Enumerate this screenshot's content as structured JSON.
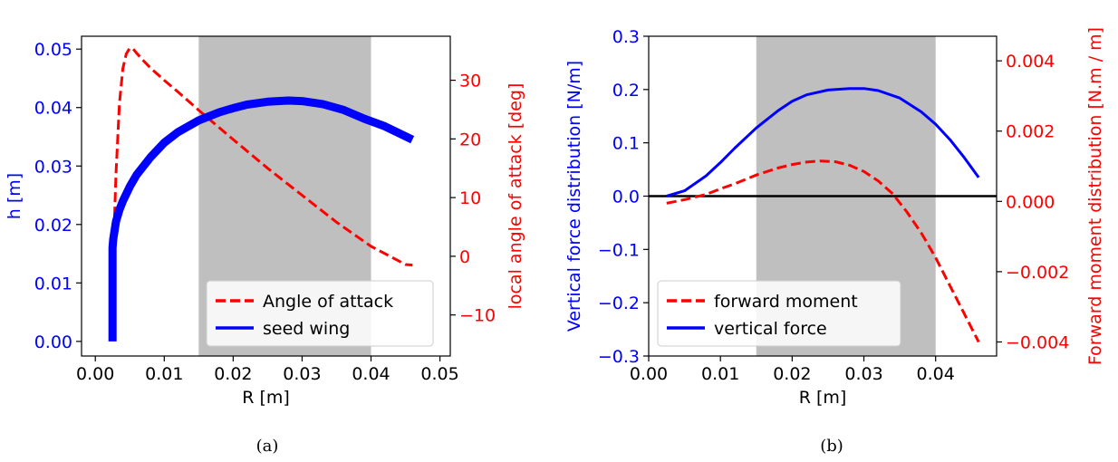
{
  "colors": {
    "blue": "#0000ff",
    "red": "#ff0000",
    "shade": "#bfbfbf",
    "black": "#000000"
  },
  "chart_data": [
    {
      "panel": "a",
      "type": "line",
      "caption": "(a)",
      "xlabel": "R [m]",
      "ylabel_left": "h [m]",
      "ylabel_right": "local angle of attack [deg]",
      "xlim": [
        -0.002,
        0.0515
      ],
      "ylim_left": [
        -0.0025,
        0.0522
      ],
      "ylim_right": [
        -17.0,
        37.5
      ],
      "xticks": [
        0.0,
        0.01,
        0.02,
        0.03,
        0.04,
        0.05
      ],
      "xtick_labels": [
        "0.00",
        "0.01",
        "0.02",
        "0.03",
        "0.04",
        "0.05"
      ],
      "yticks_left": [
        0.0,
        0.01,
        0.02,
        0.03,
        0.04,
        0.05
      ],
      "ytick_labels_left": [
        "0.00",
        "0.01",
        "0.02",
        "0.03",
        "0.04",
        "0.05"
      ],
      "yticks_right": [
        -10,
        0,
        10,
        20,
        30
      ],
      "ytick_labels_right": [
        "−10",
        "0",
        "10",
        "20",
        "30"
      ],
      "shaded_region_x": [
        0.015,
        0.04
      ],
      "legend_position": "lower right",
      "series": [
        {
          "name": "Angle of attack",
          "axis": "right",
          "style": "dashed",
          "color": "red",
          "x": [
            0.0024,
            0.0026,
            0.003,
            0.0035,
            0.004,
            0.0045,
            0.005,
            0.0055,
            0.006,
            0.007,
            0.008,
            0.01,
            0.012,
            0.015,
            0.018,
            0.02,
            0.025,
            0.03,
            0.035,
            0.04,
            0.045,
            0.046
          ],
          "values": [
            -13,
            0,
            14,
            26,
            32,
            34.5,
            35.5,
            35.3,
            34.6,
            33.3,
            32.1,
            30.0,
            28.0,
            24.9,
            21.9,
            19.9,
            15.0,
            10.4,
            5.8,
            1.7,
            -1.4,
            -1.5
          ]
        },
        {
          "name": "seed wing",
          "axis": "left",
          "style": "solid-thick",
          "color": "blue",
          "x": [
            0.0025,
            0.0025,
            0.0026,
            0.0028,
            0.003,
            0.0035,
            0.004,
            0.005,
            0.006,
            0.008,
            0.01,
            0.012,
            0.015,
            0.018,
            0.02,
            0.022,
            0.025,
            0.028,
            0.03,
            0.033,
            0.036,
            0.039,
            0.042,
            0.046
          ],
          "values": [
            0.0,
            0.016,
            0.0175,
            0.019,
            0.0205,
            0.0225,
            0.024,
            0.0265,
            0.0285,
            0.0315,
            0.034,
            0.0358,
            0.0378,
            0.0392,
            0.0399,
            0.0405,
            0.041,
            0.0412,
            0.0411,
            0.0406,
            0.0396,
            0.0381,
            0.0368,
            0.0345
          ]
        }
      ]
    },
    {
      "panel": "b",
      "type": "line",
      "caption": "(b)",
      "xlabel": "R [m]",
      "ylabel_left": "Vertical force distribution [N/m]",
      "ylabel_right": "Forward moment distribution [N.m / m]",
      "xlim": [
        0.0,
        0.0485
      ],
      "ylim_left": [
        -0.3,
        0.3
      ],
      "ylim_right": [
        -0.0044,
        0.0047
      ],
      "xticks": [
        0.0,
        0.01,
        0.02,
        0.03,
        0.04
      ],
      "xtick_labels": [
        "0.00",
        "0.01",
        "0.02",
        "0.03",
        "0.04"
      ],
      "yticks_left": [
        -0.3,
        -0.2,
        -0.1,
        0.0,
        0.1,
        0.2,
        0.3
      ],
      "ytick_labels_left": [
        "−0.3",
        "−0.2",
        "−0.1",
        "0.0",
        "0.1",
        "0.2",
        "0.3"
      ],
      "yticks_right": [
        -0.004,
        -0.002,
        0.0,
        0.002,
        0.004
      ],
      "ytick_labels_right": [
        "−0.004",
        "−0.002",
        "0.000",
        "0.002",
        "0.004"
      ],
      "shaded_region_x": [
        0.015,
        0.04
      ],
      "hline_y_left": 0.0,
      "legend_position": "lower left",
      "series": [
        {
          "name": "forward moment",
          "axis": "right",
          "style": "dashed",
          "color": "red",
          "x": [
            0.0025,
            0.005,
            0.008,
            0.01,
            0.012,
            0.015,
            0.018,
            0.02,
            0.022,
            0.024,
            0.026,
            0.028,
            0.03,
            0.032,
            0.034,
            0.036,
            0.038,
            0.04,
            0.042,
            0.044,
            0.046
          ],
          "values": [
            -5e-05,
            5e-05,
            0.0002,
            0.00036,
            0.0005,
            0.00075,
            0.00095,
            0.00105,
            0.00112,
            0.00115,
            0.00113,
            0.00103,
            0.00085,
            0.00058,
            0.00022,
            -0.0003,
            -0.0009,
            -0.0016,
            -0.0024,
            -0.0032,
            -0.004
          ]
        },
        {
          "name": "vertical force",
          "axis": "left",
          "style": "solid",
          "color": "blue",
          "x": [
            0.0025,
            0.005,
            0.008,
            0.01,
            0.012,
            0.015,
            0.018,
            0.02,
            0.022,
            0.025,
            0.028,
            0.03,
            0.032,
            0.035,
            0.038,
            0.04,
            0.042,
            0.044,
            0.046
          ],
          "values": [
            0.0,
            0.01,
            0.038,
            0.063,
            0.09,
            0.128,
            0.16,
            0.178,
            0.19,
            0.199,
            0.202,
            0.202,
            0.198,
            0.184,
            0.158,
            0.135,
            0.106,
            0.072,
            0.035
          ]
        }
      ]
    }
  ]
}
